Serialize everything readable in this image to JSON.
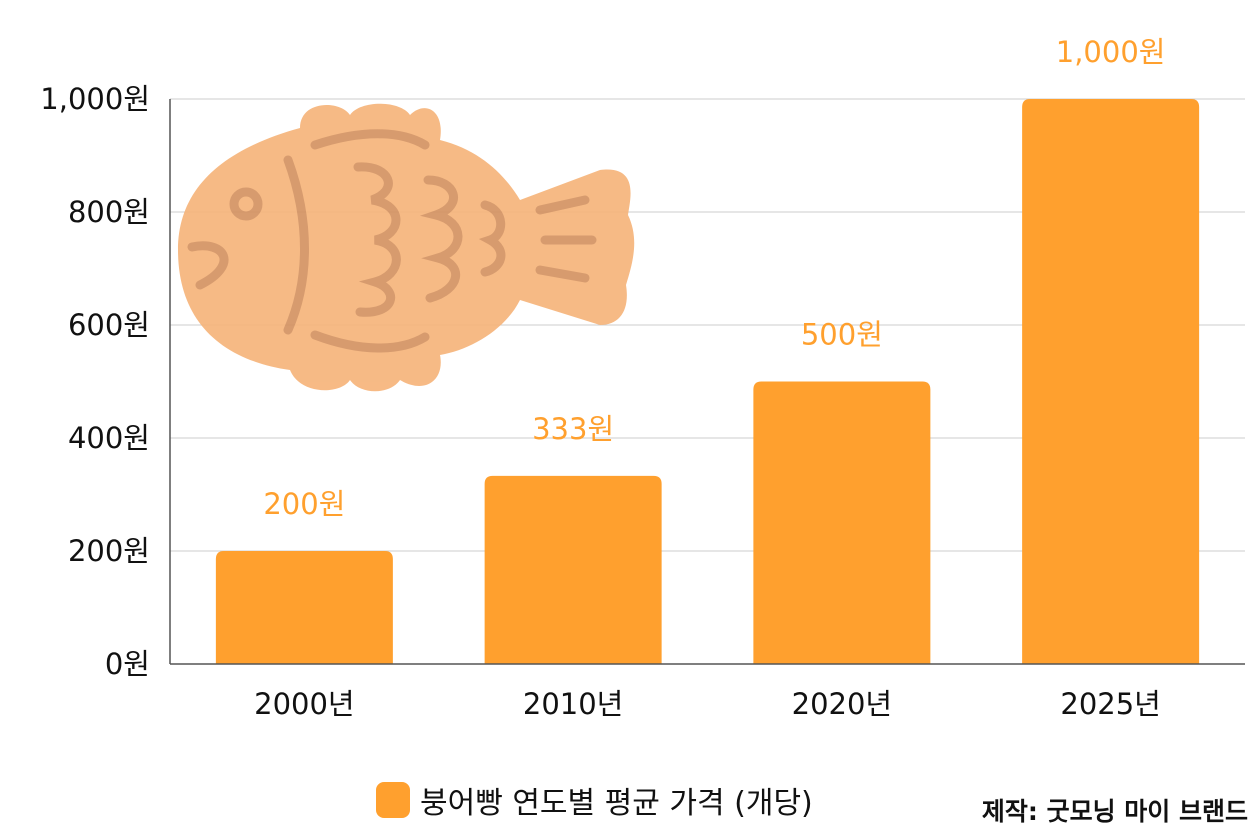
{
  "chart_data": {
    "type": "bar",
    "categories": [
      "2000년",
      "2010년",
      "2020년",
      "2025년"
    ],
    "values": [
      200,
      333,
      500,
      1000
    ],
    "data_labels": [
      "200원",
      "333원",
      "500원",
      "1,000원"
    ],
    "yticks": [
      0,
      200,
      400,
      600,
      800,
      1000
    ],
    "ytick_labels": [
      "0원",
      "200원",
      "400원",
      "600원",
      "800원",
      "1,000원"
    ],
    "ylim": [
      0,
      1000
    ],
    "grid": true,
    "legend": {
      "label": "붕어빵 연도별 평균 가격 (개당)",
      "placement": "bottom"
    },
    "title": "",
    "xlabel": "",
    "ylabel": ""
  },
  "credit": "제작: 굿모닝 마이 브랜드",
  "illustration": "taiyaki-fish-bread-icon",
  "colors": {
    "bar": "#FFA02E",
    "data_label": "#FFA02E",
    "grid": "#CCCCCC",
    "fish": "#F6B57C",
    "fish_line": "#C98A5C"
  }
}
